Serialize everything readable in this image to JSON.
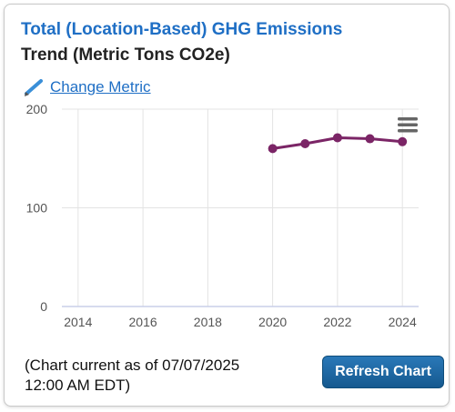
{
  "widget": {
    "title": "Total (Location-Based) GHG Emissions",
    "subtitle": "Trend (Metric Tons CO2e)",
    "change_metric_label": "Change Metric",
    "status_line1": "(Chart current as of 07/07/2025",
    "status_line2": "12:00 AM EDT)",
    "refresh_label": "Refresh Chart",
    "accent_color": "#1f6fc5",
    "button_color": "#1b659f"
  },
  "chart_data": {
    "type": "line",
    "x": [
      2020,
      2021,
      2022,
      2023,
      2024
    ],
    "series": [
      {
        "values": [
          160,
          165,
          171,
          170,
          167
        ],
        "color": "#7b2566"
      }
    ],
    "xlim": [
      2013.5,
      2024.5
    ],
    "ylim": [
      0,
      200
    ],
    "x_ticks": [
      "2014",
      "2016",
      "2018",
      "2020",
      "2022",
      "2024"
    ],
    "x_tick_values": [
      2014,
      2016,
      2018,
      2020,
      2022,
      2024
    ],
    "y_ticks": [
      "0",
      "100",
      "200"
    ],
    "y_tick_values": [
      0,
      100,
      200
    ],
    "grid": true,
    "menu_icon": "hamburger-menu-icon"
  }
}
